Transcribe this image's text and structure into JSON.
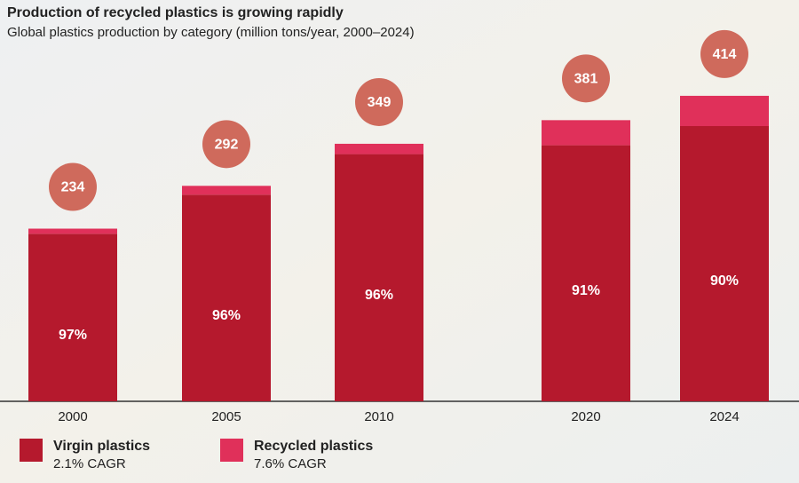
{
  "chart_data": {
    "type": "stacked_bar",
    "title": "Production of recycled plastics is growing rapidly",
    "subtitle": "Global plastics production by category (million tons/year, 2000–2024)",
    "categories": [
      "2000",
      "2005",
      "2010",
      "2020",
      "2024"
    ],
    "series": [
      {
        "name": "Virgin plastics",
        "note": "2.1% CAGR",
        "color": "#b5192d",
        "values": [
          227,
          280,
          335,
          347,
          373
        ],
        "value_labels": [
          "97%",
          "96%",
          "96%",
          "91%",
          "90%"
        ]
      },
      {
        "name": "Recycled plastics",
        "note": "7.6% CAGR",
        "color": "#e0305a",
        "values": [
          7,
          12,
          14,
          34,
          41
        ]
      }
    ],
    "totals": [
      234,
      292,
      349,
      381,
      414
    ],
    "total_color": "#cf6a5c",
    "ylim": [
      0,
      450
    ]
  }
}
